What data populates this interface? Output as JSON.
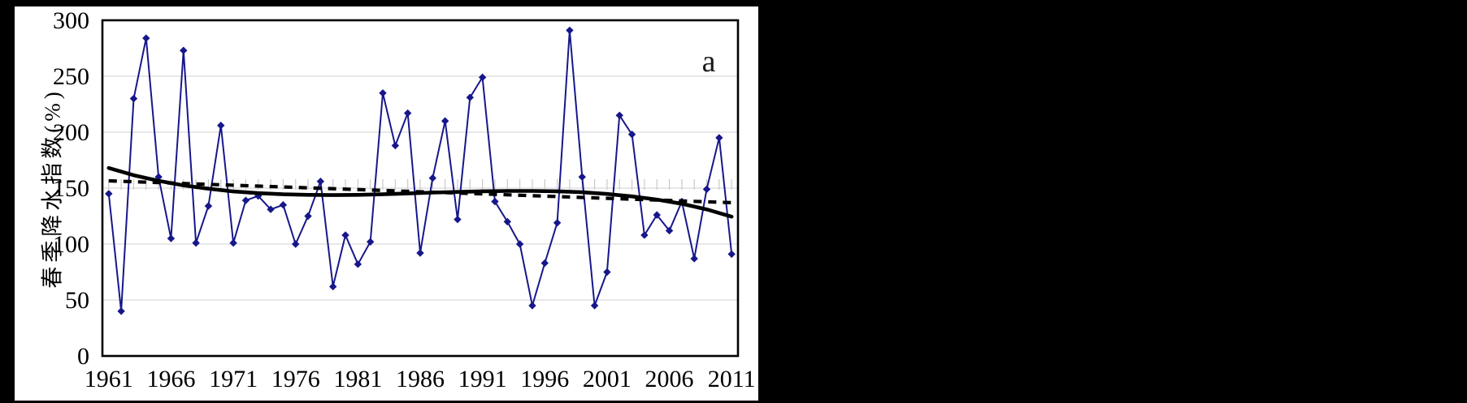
{
  "figure": {
    "panel_label": "a",
    "y_axis_title": "春季降水指数(%)"
  },
  "chart_data": {
    "type": "line",
    "title": "",
    "xlabel": "",
    "ylabel": "春季降水指数(%)",
    "panel_label": "a",
    "ylim": [
      0,
      300
    ],
    "ytick_interval": 50,
    "ytick_labels": [
      "0",
      "50",
      "100",
      "150",
      "200",
      "250",
      "300"
    ],
    "xtick_labels": [
      "1961",
      "1966",
      "1971",
      "1976",
      "1981",
      "1986",
      "1991",
      "1996",
      "2001",
      "2006",
      "2011"
    ],
    "x_range": [
      1961,
      2011
    ],
    "grid": "horizontal",
    "grid_color": "#d9d9d9",
    "year_tick_color": "#c9c9c9",
    "year_ticks_at_value": 150,
    "border_color": "#000000",
    "series": [
      {
        "name": "spring-precipitation-index",
        "style": "line-with-diamond-markers",
        "color": "#17178b",
        "values": [
          145,
          40,
          230,
          284,
          160,
          105,
          273,
          101,
          134,
          206,
          101,
          139,
          143,
          131,
          135,
          100,
          125,
          156,
          62,
          108,
          82,
          102,
          235,
          188,
          217,
          92,
          159,
          210,
          122,
          231,
          249,
          138,
          120,
          100,
          45,
          83,
          119,
          291,
          160,
          45,
          75,
          215,
          198,
          108,
          126,
          112,
          138,
          87,
          149,
          195,
          91
        ]
      },
      {
        "name": "polynomial-trend",
        "style": "solid-thick-smooth",
        "color": "#000000",
        "points": [
          [
            1961,
            168
          ],
          [
            1963,
            161.5
          ],
          [
            1965,
            156.5
          ],
          [
            1967,
            152.5
          ],
          [
            1969,
            149.5
          ],
          [
            1971,
            147
          ],
          [
            1973,
            145.5
          ],
          [
            1975,
            144.5
          ],
          [
            1977,
            144
          ],
          [
            1979,
            143.8
          ],
          [
            1981,
            144
          ],
          [
            1983,
            144.5
          ],
          [
            1985,
            145.2
          ],
          [
            1987,
            146
          ],
          [
            1989,
            146.6
          ],
          [
            1991,
            147.2
          ],
          [
            1993,
            147.5
          ],
          [
            1995,
            147.5
          ],
          [
            1997,
            147.2
          ],
          [
            1999,
            146.3
          ],
          [
            2001,
            144.8
          ],
          [
            2003,
            142.6
          ],
          [
            2005,
            139.8
          ],
          [
            2007,
            136
          ],
          [
            2009,
            131
          ],
          [
            2011,
            124.5
          ]
        ]
      },
      {
        "name": "linear-trend",
        "style": "dashed-thick",
        "color": "#000000",
        "endpoints": [
          [
            1961,
            156.5
          ],
          [
            2011,
            137
          ]
        ]
      }
    ]
  }
}
